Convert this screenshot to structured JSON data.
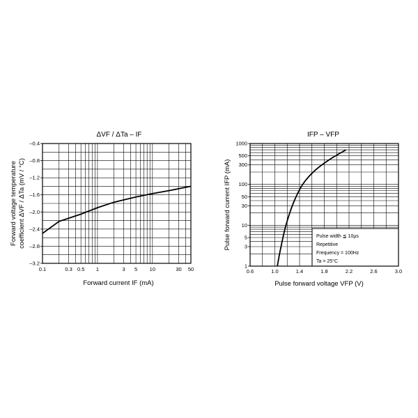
{
  "chart_data": [
    {
      "type": "line",
      "title": "ΔVF / ΔTa – IF",
      "xlabel": "Forward current  IF  (mA)",
      "ylabel_line1": "Forward voltage temperature",
      "ylabel_line2": "coefficient  ΔVF / ΔTa  (mV / °C)",
      "x_scale": "log",
      "xlim": [
        0.1,
        50
      ],
      "ylim": [
        -3.2,
        -0.4
      ],
      "grid": true,
      "x_ticks": [
        {
          "v": 0.1,
          "label": "0.1"
        },
        {
          "v": 0.3,
          "label": "0.3"
        },
        {
          "v": 0.5,
          "label": "0.5"
        },
        {
          "v": 1,
          "label": "1"
        },
        {
          "v": 3,
          "label": "3"
        },
        {
          "v": 5,
          "label": "5"
        },
        {
          "v": 10,
          "label": "10"
        },
        {
          "v": 30,
          "label": "30"
        },
        {
          "v": 50,
          "label": "50"
        }
      ],
      "y_ticks": [
        {
          "v": -3.2,
          "label": "–3.2"
        },
        {
          "v": -2.8,
          "label": "–2.8"
        },
        {
          "v": -2.4,
          "label": "–2.4"
        },
        {
          "v": -2.0,
          "label": "–2.0"
        },
        {
          "v": -1.6,
          "label": "–1.6"
        },
        {
          "v": -1.2,
          "label": "–1.2"
        },
        {
          "v": -0.8,
          "label": "–0.8"
        },
        {
          "v": -0.4,
          "label": "–0.4"
        }
      ],
      "series": [
        {
          "x": [
            0.1,
            0.2,
            0.5,
            1,
            2,
            5,
            10,
            20,
            50
          ],
          "y": [
            -2.5,
            -2.22,
            -2.05,
            -1.9,
            -1.77,
            -1.65,
            -1.57,
            -1.5,
            -1.4
          ]
        }
      ]
    },
    {
      "type": "line",
      "title": "IFP – VFP",
      "xlabel": "Pulse forward voltage  VFP  (V)",
      "ylabel": "Pulse forward current  IFP  (mA)",
      "y_scale": "log",
      "xlim": [
        0.6,
        3.0
      ],
      "ylim": [
        1,
        1000
      ],
      "grid": true,
      "x_ticks": [
        {
          "v": 0.6,
          "label": "0.6"
        },
        {
          "v": 1.0,
          "label": "1.0"
        },
        {
          "v": 1.4,
          "label": "1.4"
        },
        {
          "v": 1.8,
          "label": "1.8"
        },
        {
          "v": 2.2,
          "label": "2.2"
        },
        {
          "v": 2.6,
          "label": "2.6"
        },
        {
          "v": 3.0,
          "label": "3.0"
        }
      ],
      "y_ticks": [
        {
          "v": 1,
          "label": "1"
        },
        {
          "v": 3,
          "label": "3"
        },
        {
          "v": 5,
          "label": "5"
        },
        {
          "v": 10,
          "label": "10"
        },
        {
          "v": 30,
          "label": "30"
        },
        {
          "v": 50,
          "label": "50"
        },
        {
          "v": 100,
          "label": "100"
        },
        {
          "v": 300,
          "label": "300"
        },
        {
          "v": 500,
          "label": "500"
        },
        {
          "v": 1000,
          "label": "1000"
        }
      ],
      "series": [
        {
          "x": [
            1.04,
            1.1,
            1.18,
            1.3,
            1.45,
            1.65,
            1.9,
            2.15
          ],
          "y": [
            1,
            3,
            10,
            35,
            100,
            220,
            420,
            700
          ]
        }
      ],
      "annotations": [
        "Pulse width  ≦  10μs",
        "Repetitive",
        "Frequency = 100Hz",
        "Ta = 25°C"
      ]
    }
  ]
}
